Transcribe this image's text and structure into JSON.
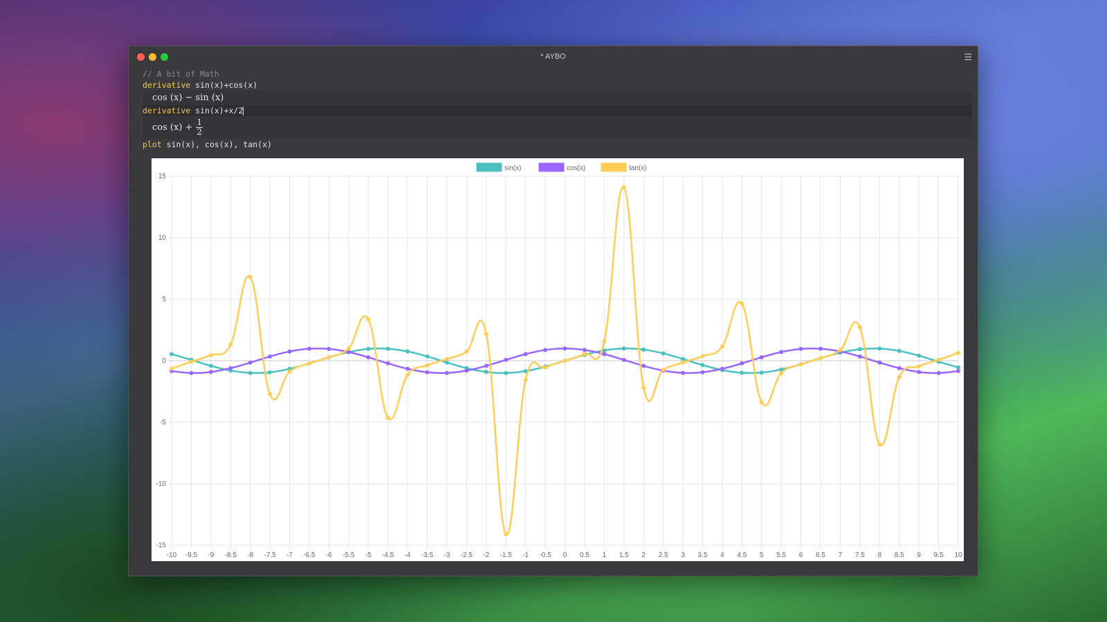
{
  "window": {
    "title": "* AYBO",
    "menu_icon": "hamburger-menu-icon",
    "traffic_lights": {
      "close": "#ff5f57",
      "minimize": "#febc2e",
      "maximize": "#28c840"
    }
  },
  "editor": {
    "comment": "// A bit of Math",
    "line1": {
      "keyword": "derivative",
      "expr": " sin(x)+cos(x)"
    },
    "result1": "cos (x) − sin (x)",
    "line2": {
      "keyword": "derivative",
      "expr": " sin(x)+x/2"
    },
    "result2": {
      "main": "cos (x) +",
      "numerator": "1",
      "denominator": "2"
    },
    "line3": {
      "keyword": "plot",
      "expr": " sin(x), cos(x), tan(x)"
    }
  },
  "chart_data": {
    "type": "line",
    "legend_position": "top",
    "grid": true,
    "ylim": [
      -15,
      15
    ],
    "yticks": [
      "15",
      "10",
      "5",
      "0",
      "-5",
      "-10",
      "-15"
    ],
    "x": [
      -10,
      -9.5,
      -9,
      -8.5,
      -8,
      -7.5,
      -7,
      -6.5,
      -6,
      -5.5,
      -5,
      -4.5,
      -4,
      -3.5,
      -3,
      -2.5,
      -2,
      -1.5,
      -1,
      -0.5,
      0,
      0.5,
      1,
      1.5,
      2,
      2.5,
      3,
      3.5,
      4,
      4.5,
      5,
      5.5,
      6,
      6.5,
      7,
      7.5,
      8,
      8.5,
      9,
      9.5,
      10
    ],
    "series": [
      {
        "name": "sin(x)",
        "color": "#4bc0c0",
        "values": [
          0.544,
          0.075,
          -0.412,
          -0.798,
          -0.989,
          -0.938,
          -0.657,
          -0.215,
          0.279,
          0.706,
          0.959,
          0.978,
          0.757,
          0.351,
          -0.141,
          -0.598,
          -0.909,
          -0.997,
          -0.841,
          -0.479,
          0,
          0.479,
          0.841,
          0.997,
          0.909,
          0.598,
          0.141,
          -0.351,
          -0.757,
          -0.978,
          -0.959,
          -0.706,
          -0.279,
          0.215,
          0.657,
          0.938,
          0.989,
          0.798,
          0.412,
          -0.075,
          -0.544
        ]
      },
      {
        "name": "cos(x)",
        "color": "#9966ff",
        "values": [
          -0.839,
          -0.997,
          -0.911,
          -0.602,
          -0.146,
          0.347,
          0.754,
          0.977,
          0.96,
          0.709,
          0.284,
          -0.211,
          -0.654,
          -0.936,
          -0.99,
          -0.801,
          -0.416,
          0.071,
          0.54,
          0.878,
          1,
          0.878,
          0.54,
          0.071,
          -0.416,
          -0.801,
          -0.99,
          -0.936,
          -0.654,
          -0.211,
          0.284,
          0.709,
          0.96,
          0.977,
          0.754,
          0.347,
          -0.146,
          -0.602,
          -0.911,
          -0.997,
          -0.839
        ]
      },
      {
        "name": "tan(x)",
        "color": "#ffcd56",
        "values": [
          -0.648,
          -0.075,
          0.452,
          1.326,
          6.8,
          -2.706,
          -0.871,
          -0.22,
          0.291,
          0.996,
          3.381,
          -4.637,
          -1.158,
          -0.375,
          0.143,
          0.747,
          2.185,
          -14.101,
          -1.557,
          -0.546,
          0,
          0.546,
          1.557,
          14.101,
          -2.185,
          -0.747,
          -0.143,
          0.375,
          1.158,
          4.637,
          -3.381,
          -0.996,
          -0.291,
          0.22,
          0.871,
          2.706,
          -6.8,
          -1.326,
          -0.452,
          0.075,
          0.648
        ]
      }
    ]
  }
}
